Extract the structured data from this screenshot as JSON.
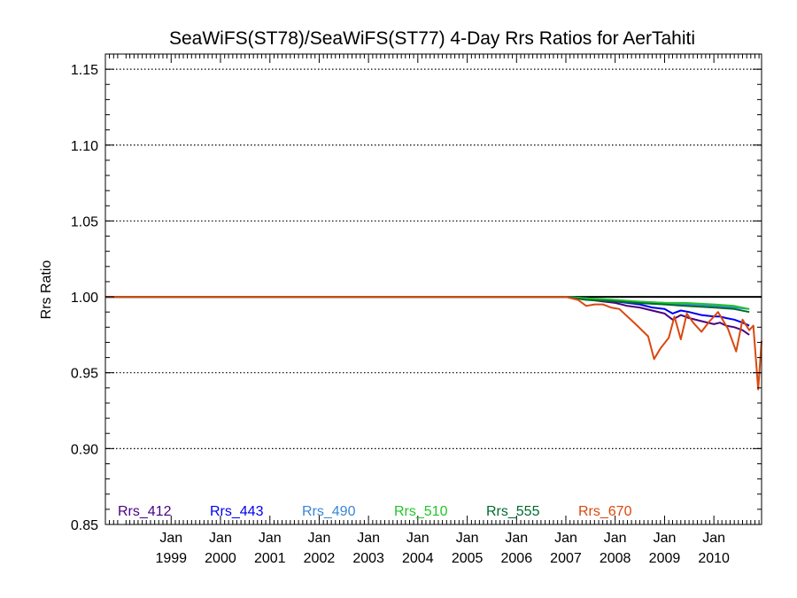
{
  "chart_data": {
    "type": "line",
    "title": "SeaWiFS(ST78)/SeaWiFS(ST77) 4-Day Rrs Ratios for AerTahiti",
    "xlabel": "",
    "ylabel": "Rrs Ratio",
    "ylim": [
      0.85,
      1.16
    ],
    "xlim": [
      "1997-09-01",
      "2010-12-20"
    ],
    "yticks": [
      "0.85",
      "0.90",
      "0.95",
      "1.00",
      "1.05",
      "1.10",
      "1.15"
    ],
    "xticks": [
      {
        "month": "Jan",
        "year": "1999",
        "date": "1999-01-01"
      },
      {
        "month": "Jan",
        "year": "2000",
        "date": "2000-01-01"
      },
      {
        "month": "Jan",
        "year": "2001",
        "date": "2001-01-01"
      },
      {
        "month": "Jan",
        "year": "2002",
        "date": "2002-01-01"
      },
      {
        "month": "Jan",
        "year": "2003",
        "date": "2003-01-01"
      },
      {
        "month": "Jan",
        "year": "2004",
        "date": "2004-01-01"
      },
      {
        "month": "Jan",
        "year": "2005",
        "date": "2005-01-01"
      },
      {
        "month": "Jan",
        "year": "2006",
        "date": "2006-01-01"
      },
      {
        "month": "Jan",
        "year": "2007",
        "date": "2007-01-01"
      },
      {
        "month": "Jan",
        "year": "2008",
        "date": "2008-01-01"
      },
      {
        "month": "Jan",
        "year": "2009",
        "date": "2009-01-01"
      },
      {
        "month": "Jan",
        "year": "2010",
        "date": "2010-01-01"
      }
    ],
    "grid": true,
    "reference_line": 1.0,
    "legend_placement": "bottom",
    "series": [
      {
        "name": "Rrs_412",
        "color": "#4B0082",
        "points": [
          [
            "1997-09-01",
            1.0
          ],
          [
            "2007-01-01",
            1.0
          ],
          [
            "2007-04-01",
            0.999
          ],
          [
            "2007-07-01",
            0.998
          ],
          [
            "2007-10-01",
            0.997
          ],
          [
            "2008-01-01",
            0.996
          ],
          [
            "2008-04-01",
            0.994
          ],
          [
            "2008-07-01",
            0.993
          ],
          [
            "2008-10-01",
            0.991
          ],
          [
            "2009-01-01",
            0.989
          ],
          [
            "2009-03-01",
            0.985
          ],
          [
            "2009-05-01",
            0.988
          ],
          [
            "2009-07-01",
            0.986
          ],
          [
            "2009-10-01",
            0.984
          ],
          [
            "2010-01-01",
            0.982
          ],
          [
            "2010-02-15",
            0.983
          ],
          [
            "2010-04-01",
            0.981
          ],
          [
            "2010-06-01",
            0.98
          ],
          [
            "2010-08-01",
            0.978
          ],
          [
            "2010-09-20",
            0.975
          ]
        ]
      },
      {
        "name": "Rrs_443",
        "color": "#0000EE",
        "points": [
          [
            "1997-09-01",
            1.0
          ],
          [
            "2007-01-01",
            1.0
          ],
          [
            "2007-04-01",
            0.999
          ],
          [
            "2007-07-01",
            0.998
          ],
          [
            "2007-10-01",
            0.998
          ],
          [
            "2008-01-01",
            0.997
          ],
          [
            "2008-04-01",
            0.996
          ],
          [
            "2008-07-01",
            0.995
          ],
          [
            "2008-10-01",
            0.993
          ],
          [
            "2009-01-01",
            0.992
          ],
          [
            "2009-03-01",
            0.989
          ],
          [
            "2009-05-01",
            0.991
          ],
          [
            "2009-07-01",
            0.99
          ],
          [
            "2009-10-01",
            0.988
          ],
          [
            "2010-01-01",
            0.987
          ],
          [
            "2010-02-15",
            0.987
          ],
          [
            "2010-04-01",
            0.986
          ],
          [
            "2010-06-01",
            0.985
          ],
          [
            "2010-08-01",
            0.983
          ],
          [
            "2010-09-20",
            0.981
          ]
        ]
      },
      {
        "name": "Rrs_490",
        "color": "#3A87D4",
        "points": [
          [
            "1997-09-01",
            1.0
          ],
          [
            "2007-01-01",
            1.0
          ],
          [
            "2007-06-01",
            0.999
          ],
          [
            "2008-01-01",
            0.998
          ],
          [
            "2008-06-01",
            0.997
          ],
          [
            "2009-01-01",
            0.996
          ],
          [
            "2009-06-01",
            0.995
          ],
          [
            "2010-01-01",
            0.994
          ],
          [
            "2010-06-01",
            0.993
          ],
          [
            "2010-09-20",
            0.992
          ]
        ]
      },
      {
        "name": "Rrs_510",
        "color": "#22C52A",
        "points": [
          [
            "1997-09-01",
            1.0
          ],
          [
            "2007-01-01",
            1.0
          ],
          [
            "2007-06-01",
            0.999
          ],
          [
            "2008-01-01",
            0.998
          ],
          [
            "2008-06-01",
            0.997
          ],
          [
            "2009-01-01",
            0.996
          ],
          [
            "2009-06-01",
            0.996
          ],
          [
            "2010-01-01",
            0.995
          ],
          [
            "2010-06-01",
            0.994
          ],
          [
            "2010-09-20",
            0.992
          ]
        ]
      },
      {
        "name": "Rrs_555",
        "color": "#006B2E",
        "points": [
          [
            "1997-09-01",
            1.0
          ],
          [
            "2007-01-01",
            1.0
          ],
          [
            "2007-06-01",
            0.998
          ],
          [
            "2008-01-01",
            0.997
          ],
          [
            "2008-06-01",
            0.996
          ],
          [
            "2009-01-01",
            0.995
          ],
          [
            "2009-06-01",
            0.994
          ],
          [
            "2010-01-01",
            0.993
          ],
          [
            "2010-06-01",
            0.992
          ],
          [
            "2010-09-20",
            0.99
          ]
        ]
      },
      {
        "name": "Rrs_670",
        "color": "#D9480F",
        "points": [
          [
            "1997-09-01",
            1.0
          ],
          [
            "2007-01-01",
            1.0
          ],
          [
            "2007-04-01",
            0.998
          ],
          [
            "2007-06-01",
            0.994
          ],
          [
            "2007-08-01",
            0.995
          ],
          [
            "2007-10-01",
            0.995
          ],
          [
            "2007-12-01",
            0.993
          ],
          [
            "2008-02-01",
            0.992
          ],
          [
            "2008-06-01",
            0.982
          ],
          [
            "2008-09-01",
            0.974
          ],
          [
            "2008-10-15",
            0.959
          ],
          [
            "2008-12-01",
            0.966
          ],
          [
            "2009-02-01",
            0.973
          ],
          [
            "2009-03-15",
            0.987
          ],
          [
            "2009-05-01",
            0.972
          ],
          [
            "2009-06-15",
            0.989
          ],
          [
            "2009-08-01",
            0.983
          ],
          [
            "2009-10-01",
            0.977
          ],
          [
            "2009-12-01",
            0.984
          ],
          [
            "2010-02-01",
            0.99
          ],
          [
            "2010-04-15",
            0.979
          ],
          [
            "2010-06-15",
            0.964
          ],
          [
            "2010-08-01",
            0.985
          ],
          [
            "2010-09-20",
            0.978
          ],
          [
            "2010-10-20",
            0.981
          ],
          [
            "2010-11-25",
            0.939
          ],
          [
            "2010-12-20",
            0.971
          ]
        ]
      }
    ]
  }
}
